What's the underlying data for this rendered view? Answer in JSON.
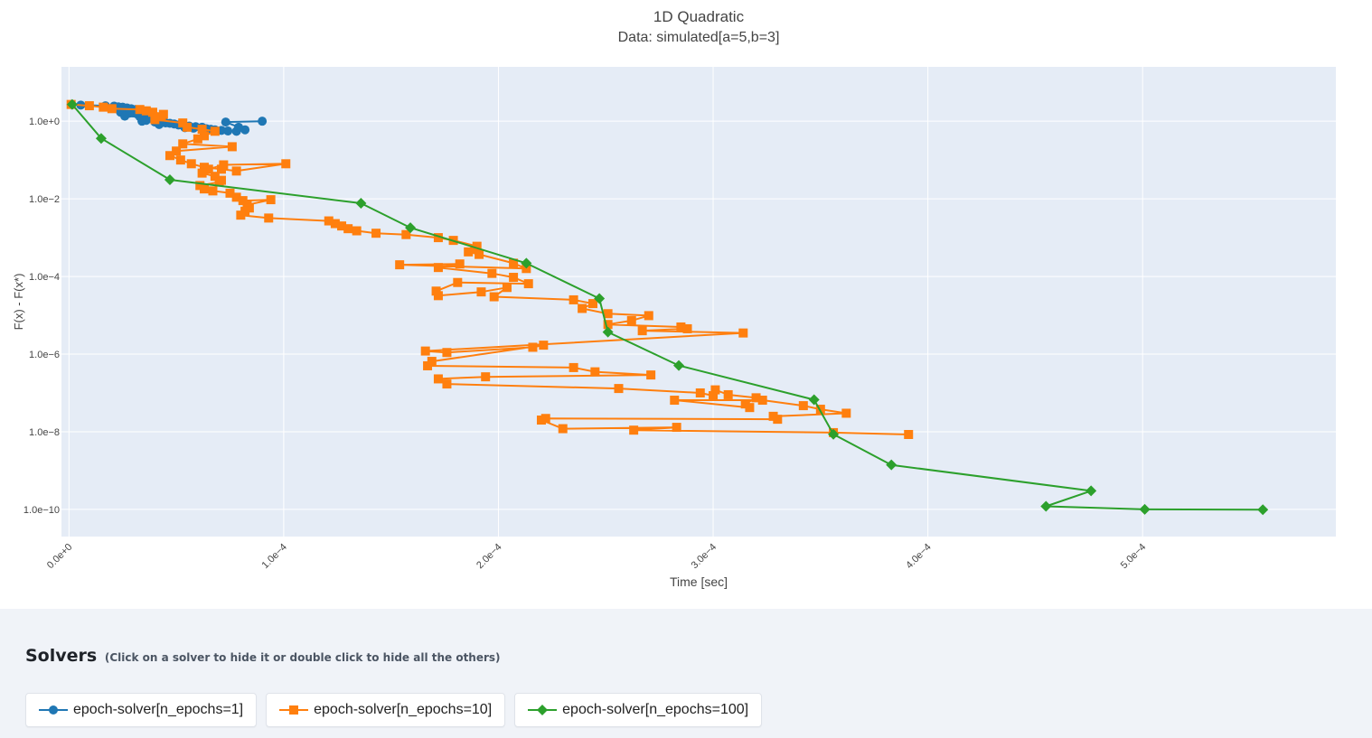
{
  "chart_data": {
    "type": "line",
    "title": "1D Quadratic",
    "subtitle": "Data: simulated[a=5,b=3]",
    "xlabel": "Time [sec]",
    "ylabel": "F(x) - F(x*)",
    "x_scale": "linear",
    "y_scale": "log",
    "xlim": [
      -3.5e-06,
      0.00059
    ],
    "ylim_log10": [
      -10.7,
      1.4
    ],
    "x_ticks": [
      0,
      0.0001,
      0.0002,
      0.0003,
      0.0004,
      0.0005
    ],
    "x_tick_labels": [
      "0.0e+0",
      "1.0e−4",
      "2.0e−4",
      "3.0e−4",
      "4.0e−4",
      "5.0e−4"
    ],
    "y_ticks_log10": [
      0,
      -2,
      -4,
      -6,
      -8,
      -10
    ],
    "y_tick_labels": [
      "1.0e+0",
      "1.0e−2",
      "1.0e−4",
      "1.0e−6",
      "1.0e−8",
      "1.0e−10"
    ],
    "grid": true,
    "series": [
      {
        "name": "epoch-solver[n_epochs=1]",
        "color": "#1f77b4",
        "marker": "circle",
        "x": [
          1e-06,
          5.5e-06,
          1.7e-05,
          2.1e-05,
          2.3e-05,
          2.5e-05,
          2.7e-05,
          2.9e-05,
          3.1e-05,
          2.4e-05,
          2.8e-05,
          3.2e-05,
          3.5e-05,
          2.6e-05,
          3.3e-05,
          3.8e-05,
          4.1e-05,
          4.3e-05,
          3.6e-05,
          3.4e-05,
          4e-05,
          4.5e-05,
          4.7e-05,
          4.9e-05,
          4.2e-05,
          5.1e-05,
          5.3e-05,
          5.6e-05,
          5.9e-05,
          6.2e-05,
          5.4e-05,
          5.8e-05,
          6.4e-05,
          6.6e-05,
          6.8e-05,
          7.1e-05,
          7.4e-05,
          7.8e-05,
          8.2e-05,
          7.9e-05,
          7.3e-05,
          9e-05
        ],
        "y": [
          2.7,
          2.6,
          2.5,
          2.45,
          2.35,
          2.3,
          2.2,
          2.1,
          2.0,
          1.7,
          1.6,
          1.5,
          1.4,
          1.35,
          1.3,
          1.25,
          1.2,
          1.1,
          1.05,
          1.0,
          0.95,
          0.9,
          0.88,
          0.85,
          0.82,
          0.8,
          0.78,
          0.75,
          0.72,
          0.7,
          0.68,
          0.66,
          0.64,
          0.62,
          0.6,
          0.58,
          0.56,
          0.55,
          0.6,
          0.7,
          0.95,
          1.0
        ]
      },
      {
        "name": "epoch-solver[n_epochs=10]",
        "color": "#ff7f0e",
        "marker": "square",
        "x": [
          1e-06,
          9.5e-06,
          1.6e-05,
          2e-05,
          3.3e-05,
          3.6e-05,
          3.9e-05,
          4.4e-05,
          4.3e-05,
          4e-05,
          5.3e-05,
          5.5e-05,
          6.2e-05,
          6.8e-05,
          6.3e-05,
          6e-05,
          5.3e-05,
          7.6e-05,
          5e-05,
          4.7e-05,
          5.2e-05,
          5.7e-05,
          6.3e-05,
          7.1e-05,
          7.8e-05,
          0.000101,
          7.2e-05,
          6.5e-05,
          6.2e-05,
          6.8e-05,
          7.1e-05,
          7e-05,
          6.1e-05,
          6.3e-05,
          6.7e-05,
          7.5e-05,
          7.8e-05,
          8.1e-05,
          9.4e-05,
          8.3e-05,
          8.4e-05,
          8.2e-05,
          8e-05,
          9.3e-05,
          0.000121,
          0.000124,
          0.000127,
          0.00013,
          0.000134,
          0.000143,
          0.000157,
          0.000172,
          0.000179,
          0.00019,
          0.000189,
          0.000186,
          0.000191,
          0.000207,
          0.000213,
          0.000154,
          0.000182,
          0.000172,
          0.000197,
          0.000207,
          0.000214,
          0.000181,
          0.000171,
          0.000172,
          0.000192,
          0.000204,
          0.000198,
          0.000235,
          0.000244,
          0.000239,
          0.000251,
          0.00027,
          0.000262,
          0.000251,
          0.000285,
          0.000288,
          0.000267,
          0.000314,
          0.000166,
          0.000176,
          0.000216,
          0.000221,
          0.000169,
          0.000167,
          0.000235,
          0.000245,
          0.000271,
          0.000194,
          0.000172,
          0.000176,
          0.000256,
          0.000294,
          0.0003,
          0.000301,
          0.000307,
          0.00032,
          0.000315,
          0.000317,
          0.000282,
          0.000323,
          0.000342,
          0.00035,
          0.000362,
          0.000328,
          0.00033,
          0.000222,
          0.00022,
          0.00023,
          0.000283,
          0.000263,
          0.000356,
          0.000391
        ],
        "y": [
          2.7,
          2.5,
          2.3,
          2.1,
          2.0,
          1.85,
          1.7,
          1.5,
          1.3,
          1.1,
          0.9,
          0.7,
          0.62,
          0.55,
          0.42,
          0.35,
          0.26,
          0.22,
          0.17,
          0.13,
          0.1,
          0.08,
          0.065,
          0.058,
          0.052,
          0.08,
          0.075,
          0.058,
          0.046,
          0.038,
          0.03,
          0.027,
          0.022,
          0.018,
          0.016,
          0.014,
          0.011,
          0.009,
          0.0095,
          0.007,
          0.0058,
          0.0048,
          0.0038,
          0.0032,
          0.0027,
          0.0023,
          0.002,
          0.0017,
          0.0015,
          0.0013,
          0.0012,
          0.001,
          0.00085,
          0.0006,
          0.0005,
          0.00043,
          0.00037,
          0.00022,
          0.00016,
          0.0002,
          0.00021,
          0.00017,
          0.00012,
          9.5e-05,
          6.5e-05,
          7e-05,
          4.2e-05,
          3.2e-05,
          4e-05,
          5.2e-05,
          3e-05,
          2.5e-05,
          2e-05,
          1.5e-05,
          1.1e-05,
          9.8e-06,
          7.3e-06,
          5.8e-06,
          5e-06,
          4.5e-06,
          4e-06,
          3.5e-06,
          1.2e-06,
          1.1e-06,
          1.5e-06,
          1.7e-06,
          6.5e-07,
          5e-07,
          4.5e-07,
          3.5e-07,
          2.9e-07,
          2.6e-07,
          2.3e-07,
          1.7e-07,
          1.3e-07,
          1e-07,
          8.5e-08,
          1.2e-07,
          9e-08,
          7.5e-08,
          5.2e-08,
          4.2e-08,
          6.5e-08,
          6.5e-08,
          4.7e-08,
          3.8e-08,
          3e-08,
          2.5e-08,
          2.1e-08,
          2.2e-08,
          2e-08,
          1.2e-08,
          1.3e-08,
          1.1e-08,
          9.5e-09,
          8.5e-09
        ]
      },
      {
        "name": "epoch-solver[n_epochs=100]",
        "color": "#2ca02c",
        "marker": "diamond",
        "x": [
          1.5e-06,
          1.5e-05,
          4.7e-05,
          0.000136,
          0.000159,
          0.000213,
          0.000247,
          0.000251,
          0.000284,
          0.000347,
          0.000356,
          0.000383,
          0.000476,
          0.000455,
          0.000501,
          0.000556
        ],
        "y": [
          2.7,
          0.36,
          0.031,
          0.0077,
          0.0018,
          0.00022,
          2.7e-05,
          3.7e-06,
          5.1e-07,
          6.7e-08,
          8.6e-09,
          1.4e-09,
          3e-10,
          1.2e-10,
          1e-10,
          9.8e-11
        ]
      }
    ]
  },
  "legend_section": {
    "heading": "Solvers",
    "hint": "(Click on a solver to hide it or double click to hide all the others)",
    "items": [
      {
        "label": "epoch-solver[n_epochs=1]",
        "color": "#1f77b4",
        "marker": "circle"
      },
      {
        "label": "epoch-solver[n_epochs=10]",
        "color": "#ff7f0e",
        "marker": "square"
      },
      {
        "label": "epoch-solver[n_epochs=100]",
        "color": "#2ca02c",
        "marker": "diamond"
      }
    ]
  }
}
